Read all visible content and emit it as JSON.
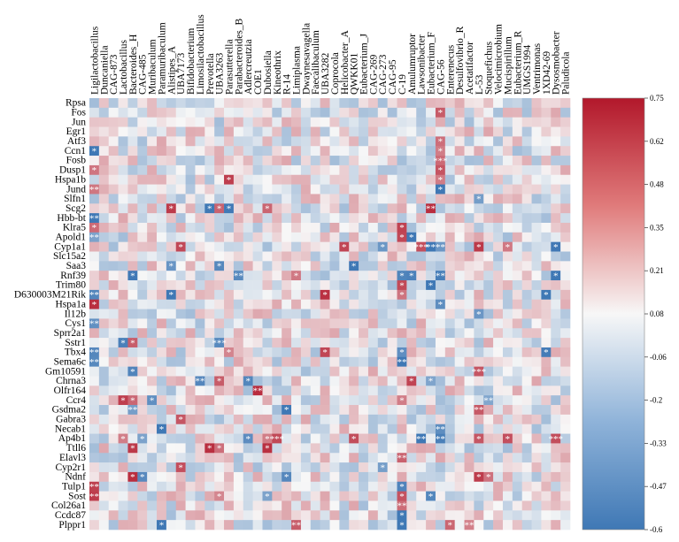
{
  "chart_data": {
    "type": "heatmap",
    "title": "",
    "columns": [
      "Ligilactobacillus",
      "Duncaniella",
      "CAG-873",
      "Lactobacillus",
      "Bacteroides_H",
      "CAG-485",
      "Muribaculum",
      "Paramuribaculum",
      "Alistipes_A",
      "UBA7173",
      "Bifidobacterium",
      "Limosilactobacillus",
      "Prevotella",
      "UBA3263",
      "Parasutterella",
      "Parabacteroides_B",
      "Adlercreutzia",
      "COE1",
      "Dubosiella",
      "Kineothrix",
      "R-14",
      "Limiplasma",
      "Dwaynesavagella",
      "Faecalibaculum",
      "UBA3282",
      "Coprocola",
      "Helicobacter_A",
      "QWKK01",
      "Eubacterium_J",
      "CAG-269",
      "CAG-273",
      "CAG-95",
      "C-19",
      "Amulumruptor",
      "Lawsonibacter",
      "Eubacterium_F",
      "CAG-56",
      "Enterenecus",
      "Desulfovibrio_R",
      "Acetatifactor",
      "L-53",
      "Stoquefichus",
      "Velocimicrobium",
      "Mucispirillum",
      "Eubacterium_R",
      "UMGS1994",
      "Ventrimonas",
      "1XD42-69",
      "Dysosmobacter",
      "Paludicola"
    ],
    "rows": [
      "Rpsa",
      "Fos",
      "Jun",
      "Egr1",
      "Atf3",
      "Ccn1",
      "Fosb",
      "Dusp1",
      "Hspa1b",
      "Jund",
      "Slfn1",
      "Scg2",
      "Hbb-bt",
      "Klra5",
      "Apold1",
      "Cyp1a1",
      "Slc15a2",
      "Saa3",
      "Rnf39",
      "Trim80",
      "D630003M21Rik",
      "Hspa1a",
      "Il12b",
      "Cys1",
      "Sprr2a1",
      "Sstr1",
      "Tbx4",
      "Sema6c",
      "Gm10591",
      "Chrna3",
      "Olfr164",
      "Ccr4",
      "Gsdma2",
      "Gabra3",
      "Necab1",
      "Ap4b1",
      "Ttll6",
      "Elavl3",
      "Cyp2r1",
      "Ndnf",
      "Tulp1",
      "Sost",
      "Col26a1",
      "Ccdc87",
      "Plppr1"
    ],
    "value_range": [
      -0.6,
      0.75
    ],
    "colorbar_ticks": [
      "0.75",
      "0.62",
      "0.48",
      "0.35",
      "0.21",
      "0.08",
      "-0.06",
      "-0.2",
      "-0.33",
      "-0.47",
      "-0.6"
    ],
    "significance_marks": [
      [
        0,
        0,
        ""
      ],
      [
        0,
        5,
        "*"
      ],
      [
        0,
        7,
        "*"
      ],
      [
        0,
        9,
        "**"
      ],
      [
        0,
        12,
        "**"
      ],
      [
        0,
        13,
        "*"
      ],
      [
        0,
        14,
        "**"
      ],
      [
        0,
        20,
        "**"
      ],
      [
        0,
        21,
        "*"
      ],
      [
        0,
        23,
        "**"
      ],
      [
        0,
        26,
        "**"
      ],
      [
        0,
        27,
        "**"
      ],
      [
        0,
        40,
        "**"
      ],
      [
        0,
        41,
        "**"
      ],
      [
        36,
        1,
        "*"
      ],
      [
        36,
        4,
        "*"
      ],
      [
        36,
        5,
        "*"
      ],
      [
        36,
        6,
        "***"
      ],
      [
        36,
        7,
        "*"
      ],
      [
        36,
        8,
        "*"
      ],
      [
        36,
        9,
        "*"
      ],
      [
        8,
        11,
        "*"
      ],
      [
        14,
        8,
        "*"
      ],
      [
        12,
        11,
        "*"
      ],
      [
        13,
        11,
        "*"
      ],
      [
        14,
        11,
        "*"
      ],
      [
        18,
        11,
        "*"
      ],
      [
        35,
        11,
        "**"
      ],
      [
        40,
        10,
        "*"
      ],
      [
        32,
        14,
        "*"
      ],
      [
        32,
        13,
        "*"
      ],
      [
        33,
        14,
        "*"
      ],
      [
        9,
        15,
        "*"
      ],
      [
        26,
        15,
        "*"
      ],
      [
        30,
        15,
        "*"
      ],
      [
        34,
        15,
        "***"
      ],
      [
        35,
        15,
        "**"
      ],
      [
        36,
        15,
        "**"
      ],
      [
        40,
        15,
        "*"
      ],
      [
        43,
        15,
        "*"
      ],
      [
        48,
        15,
        "*"
      ],
      [
        8,
        17,
        "*"
      ],
      [
        13,
        17,
        "*"
      ],
      [
        27,
        17,
        "*"
      ],
      [
        4,
        18,
        "*"
      ],
      [
        15,
        18,
        "**"
      ],
      [
        21,
        18,
        "*"
      ],
      [
        32,
        18,
        "*"
      ],
      [
        33,
        18,
        "*"
      ],
      [
        36,
        18,
        "**"
      ],
      [
        48,
        18,
        "*"
      ],
      [
        32,
        19,
        "*"
      ],
      [
        35,
        19,
        "*"
      ],
      [
        8,
        20,
        "*"
      ],
      [
        24,
        20,
        "*"
      ],
      [
        32,
        20,
        "*"
      ],
      [
        47,
        20,
        "*"
      ],
      [
        36,
        21,
        "*"
      ],
      [
        40,
        22,
        "*"
      ],
      [
        3,
        25,
        "*"
      ],
      [
        4,
        25,
        "*"
      ],
      [
        13,
        25,
        "***"
      ],
      [
        24,
        26,
        "*"
      ],
      [
        14,
        26,
        "*"
      ],
      [
        32,
        26,
        "*"
      ],
      [
        47,
        26,
        "*"
      ],
      [
        32,
        27,
        "**"
      ],
      [
        4,
        28,
        "*"
      ],
      [
        40,
        28,
        "***"
      ],
      [
        11,
        29,
        "**"
      ],
      [
        13,
        29,
        "*"
      ],
      [
        16,
        29,
        "*"
      ],
      [
        33,
        29,
        "*"
      ],
      [
        35,
        29,
        "*"
      ],
      [
        17,
        30,
        "**"
      ],
      [
        3,
        31,
        "*"
      ],
      [
        4,
        31,
        "*"
      ],
      [
        6,
        31,
        "*"
      ],
      [
        32,
        31,
        "*"
      ],
      [
        41,
        31,
        "**"
      ],
      [
        4,
        32,
        "**"
      ],
      [
        20,
        32,
        "*"
      ],
      [
        40,
        32,
        "**"
      ],
      [
        9,
        33,
        "*"
      ],
      [
        7,
        34,
        "*"
      ],
      [
        36,
        34,
        "**"
      ],
      [
        3,
        35,
        "*"
      ],
      [
        5,
        35,
        "*"
      ],
      [
        16,
        35,
        "*"
      ],
      [
        18,
        35,
        "*"
      ],
      [
        19,
        35,
        "***"
      ],
      [
        27,
        35,
        "*"
      ],
      [
        34,
        35,
        "**"
      ],
      [
        36,
        35,
        "**"
      ],
      [
        40,
        35,
        "*"
      ],
      [
        43,
        35,
        "*"
      ],
      [
        48,
        35,
        "***"
      ],
      [
        4,
        36,
        "*"
      ],
      [
        12,
        36,
        "*"
      ],
      [
        13,
        36,
        "*"
      ],
      [
        18,
        36,
        "*"
      ],
      [
        32,
        37,
        "**"
      ],
      [
        9,
        38,
        "*"
      ],
      [
        30,
        38,
        "*"
      ],
      [
        4,
        39,
        "*"
      ],
      [
        5,
        39,
        "*"
      ],
      [
        20,
        39,
        "*"
      ],
      [
        40,
        39,
        "*"
      ],
      [
        41,
        39,
        "*"
      ],
      [
        32,
        40,
        "*"
      ],
      [
        13,
        41,
        "*"
      ],
      [
        18,
        41,
        "*"
      ],
      [
        32,
        41,
        "*"
      ],
      [
        35,
        41,
        "*"
      ],
      [
        32,
        42,
        "**"
      ],
      [
        32,
        43,
        "*"
      ],
      [
        7,
        44,
        "*"
      ],
      [
        21,
        44,
        "**"
      ],
      [
        32,
        44,
        "*"
      ],
      [
        37,
        44,
        "*"
      ],
      [
        39,
        44,
        "**"
      ]
    ]
  }
}
